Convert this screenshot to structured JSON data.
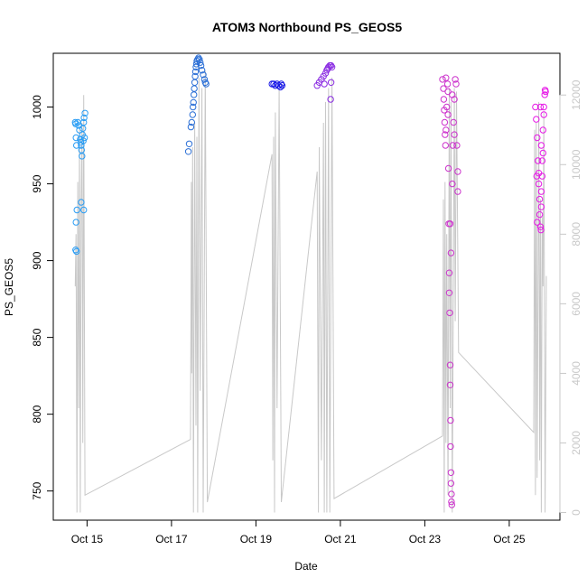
{
  "chart_data": {
    "type": "scatter",
    "title": "ATOM3 Northbound PS_GEOS5",
    "xlabel": "Date",
    "ylabel": "PS_GEOS5",
    "x_unit": "day of October",
    "xlim": [
      14.2,
      26.2
    ],
    "ylim": [
      731,
      1035
    ],
    "x_ticks": [
      {
        "value": 15,
        "label": "Oct 15"
      },
      {
        "value": 17,
        "label": "Oct 17"
      },
      {
        "value": 19,
        "label": "Oct 19"
      },
      {
        "value": 21,
        "label": "Oct 21"
      },
      {
        "value": 23,
        "label": "Oct 23"
      },
      {
        "value": 25,
        "label": "Oct 25"
      }
    ],
    "y_ticks": [
      750,
      800,
      850,
      900,
      950,
      1000
    ],
    "y2_ticks": [
      0,
      2000,
      4000,
      6000,
      8000,
      10000,
      12000
    ],
    "y2lim": [
      -220,
      13200
    ],
    "grid": false,
    "legend": "none",
    "marker": "open-circle",
    "colors": {
      "altitude_line": "#c8c8c8",
      "axis": "#000000",
      "right_axis": "#c8c8c8"
    },
    "series": [
      {
        "color": "#2a9df4",
        "points": [
          [
            14.72,
            990
          ],
          [
            14.73,
            989
          ],
          [
            14.74,
            980
          ],
          [
            14.75,
            975
          ],
          [
            14.76,
            933
          ],
          [
            14.74,
            925
          ],
          [
            14.73,
            907
          ],
          [
            14.75,
            906
          ],
          [
            14.78,
            990
          ],
          [
            14.8,
            988
          ],
          [
            14.82,
            985
          ],
          [
            14.84,
            979
          ],
          [
            14.85,
            977
          ],
          [
            14.86,
            975
          ],
          [
            14.87,
            972
          ],
          [
            14.88,
            968
          ],
          [
            14.86,
            938
          ],
          [
            14.92,
            933
          ],
          [
            14.9,
            986
          ],
          [
            14.92,
            990
          ],
          [
            14.93,
            993
          ],
          [
            14.95,
            996
          ],
          [
            14.94,
            980
          ],
          [
            14.91,
            978
          ],
          [
            14.89,
            982
          ]
        ]
      },
      {
        "color": "#2b6fd6",
        "points": [
          [
            17.4,
            971
          ],
          [
            17.42,
            976
          ],
          [
            17.46,
            987
          ],
          [
            17.48,
            990
          ],
          [
            17.5,
            995
          ],
          [
            17.51,
            1000
          ],
          [
            17.52,
            1003
          ],
          [
            17.53,
            1008
          ],
          [
            17.54,
            1012
          ],
          [
            17.55,
            1016
          ],
          [
            17.56,
            1020
          ],
          [
            17.57,
            1023
          ],
          [
            17.58,
            1026
          ],
          [
            17.59,
            1028
          ],
          [
            17.6,
            1030
          ],
          [
            17.62,
            1031
          ],
          [
            17.64,
            1032
          ],
          [
            17.66,
            1031
          ],
          [
            17.68,
            1029
          ],
          [
            17.7,
            1027
          ],
          [
            17.72,
            1024
          ],
          [
            17.75,
            1021
          ],
          [
            17.78,
            1018
          ],
          [
            17.8,
            1016
          ],
          [
            17.82,
            1015
          ]
        ]
      },
      {
        "color": "#1a1ae6",
        "points": [
          [
            19.38,
            1015
          ],
          [
            19.42,
            1015
          ],
          [
            19.46,
            1014
          ],
          [
            19.5,
            1015
          ],
          [
            19.54,
            1014
          ],
          [
            19.58,
            1013
          ],
          [
            19.6,
            1015
          ],
          [
            19.62,
            1014
          ]
        ]
      },
      {
        "color": "#8a2be2",
        "points": [
          [
            20.45,
            1014
          ],
          [
            20.5,
            1016
          ],
          [
            20.55,
            1018
          ],
          [
            20.6,
            1020
          ],
          [
            20.62,
            1015
          ],
          [
            20.65,
            1022
          ],
          [
            20.68,
            1024
          ],
          [
            20.7,
            1025
          ],
          [
            20.72,
            1026
          ],
          [
            20.75,
            1027
          ],
          [
            20.78,
            1027
          ],
          [
            20.8,
            1026
          ],
          [
            20.78,
            1016
          ],
          [
            20.77,
            1005
          ]
        ]
      },
      {
        "color": "#cc33cc",
        "points": [
          [
            23.42,
            1018
          ],
          [
            23.44,
            1012
          ],
          [
            23.45,
            1005
          ],
          [
            23.46,
            998
          ],
          [
            23.47,
            990
          ],
          [
            23.48,
            982
          ],
          [
            23.49,
            975
          ],
          [
            23.5,
            985
          ],
          [
            23.52,
            1000
          ],
          [
            23.54,
            1015
          ],
          [
            23.55,
            995
          ],
          [
            23.56,
            960
          ],
          [
            23.57,
            924
          ],
          [
            23.58,
            892
          ],
          [
            23.58,
            879
          ],
          [
            23.59,
            866
          ],
          [
            23.6,
            832
          ],
          [
            23.6,
            819
          ],
          [
            23.61,
            796
          ],
          [
            23.61,
            779
          ],
          [
            23.62,
            762
          ],
          [
            23.62,
            755
          ],
          [
            23.63,
            748
          ],
          [
            23.63,
            743
          ],
          [
            23.64,
            741
          ],
          [
            23.65,
            950
          ],
          [
            23.66,
            975
          ],
          [
            23.68,
            990
          ],
          [
            23.7,
            1005
          ],
          [
            23.72,
            1018
          ],
          [
            23.74,
            1015
          ],
          [
            23.76,
            975
          ],
          [
            23.78,
            958
          ],
          [
            23.78,
            945
          ],
          [
            23.6,
            924
          ],
          [
            23.62,
            905
          ],
          [
            23.5,
            1019
          ],
          [
            23.55,
            1010
          ],
          [
            23.65,
            1008
          ],
          [
            23.7,
            982
          ]
        ]
      },
      {
        "color": "#e619e6",
        "points": [
          [
            25.62,
            1000
          ],
          [
            25.64,
            992
          ],
          [
            25.66,
            980
          ],
          [
            25.68,
            965
          ],
          [
            25.7,
            957
          ],
          [
            25.7,
            950
          ],
          [
            25.72,
            940
          ],
          [
            25.72,
            930
          ],
          [
            25.74,
            922
          ],
          [
            25.75,
            920
          ],
          [
            25.76,
            935
          ],
          [
            25.76,
            945
          ],
          [
            25.78,
            955
          ],
          [
            25.78,
            965
          ],
          [
            25.8,
            970
          ],
          [
            25.8,
            985
          ],
          [
            25.82,
            995
          ],
          [
            25.82,
            1000
          ],
          [
            25.84,
            1008
          ],
          [
            25.85,
            1011
          ],
          [
            25.86,
            1010
          ],
          [
            25.74,
            1000
          ],
          [
            25.76,
            975
          ],
          [
            25.65,
            955
          ],
          [
            25.66,
            925
          ]
        ]
      }
    ],
    "altitude": {
      "color": "#c8c8c8",
      "points": [
        [
          14.72,
          6500
        ],
        [
          14.74,
          8000
        ],
        [
          14.76,
          0
        ],
        [
          14.78,
          9500
        ],
        [
          14.8,
          3000
        ],
        [
          14.82,
          11000
        ],
        [
          14.84,
          0
        ],
        [
          14.86,
          9000
        ],
        [
          14.88,
          11200
        ],
        [
          14.9,
          2000
        ],
        [
          14.92,
          12000
        ],
        [
          14.95,
          500
        ],
        [
          17.45,
          2100
        ],
        [
          17.46,
          5500
        ],
        [
          17.47,
          9500
        ],
        [
          17.48,
          4000
        ],
        [
          17.5,
          10500
        ],
        [
          17.52,
          0
        ],
        [
          17.55,
          11200
        ],
        [
          17.58,
          2500
        ],
        [
          17.6,
          10800
        ],
        [
          17.62,
          0
        ],
        [
          17.65,
          12500
        ],
        [
          17.68,
          3500
        ],
        [
          17.72,
          12200
        ],
        [
          17.75,
          0
        ],
        [
          17.8,
          12700
        ],
        [
          17.85,
          300
        ],
        [
          19.38,
          10300
        ],
        [
          19.4,
          1500
        ],
        [
          19.42,
          10800
        ],
        [
          19.44,
          0
        ],
        [
          19.46,
          11500
        ],
        [
          19.5,
          3000
        ],
        [
          19.55,
          12200
        ],
        [
          19.6,
          300
        ],
        [
          20.45,
          9800
        ],
        [
          20.48,
          0
        ],
        [
          20.5,
          10500
        ],
        [
          20.55,
          1500
        ],
        [
          20.6,
          11200
        ],
        [
          20.62,
          0
        ],
        [
          20.65,
          11800
        ],
        [
          20.68,
          0
        ],
        [
          20.72,
          12200
        ],
        [
          20.75,
          0
        ],
        [
          20.8,
          12500
        ],
        [
          20.85,
          400
        ],
        [
          23.42,
          2200
        ],
        [
          23.44,
          9000
        ],
        [
          23.46,
          0
        ],
        [
          23.48,
          9500
        ],
        [
          23.5,
          2000
        ],
        [
          23.52,
          8000
        ],
        [
          23.55,
          500
        ],
        [
          23.58,
          12200
        ],
        [
          23.6,
          3000
        ],
        [
          23.62,
          11800
        ],
        [
          23.65,
          0
        ],
        [
          23.7,
          12200
        ],
        [
          23.72,
          5500
        ],
        [
          23.75,
          12100
        ],
        [
          23.8,
          4600
        ],
        [
          25.58,
          2300
        ],
        [
          25.6,
          11000
        ],
        [
          25.62,
          500
        ],
        [
          25.64,
          11200
        ],
        [
          25.66,
          1000
        ],
        [
          25.7,
          11800
        ],
        [
          25.72,
          1500
        ],
        [
          25.74,
          9000
        ],
        [
          25.76,
          0
        ],
        [
          25.78,
          8500
        ],
        [
          25.8,
          6500
        ],
        [
          25.82,
          11500
        ],
        [
          25.85,
          0
        ],
        [
          25.88,
          6800
        ]
      ]
    }
  }
}
